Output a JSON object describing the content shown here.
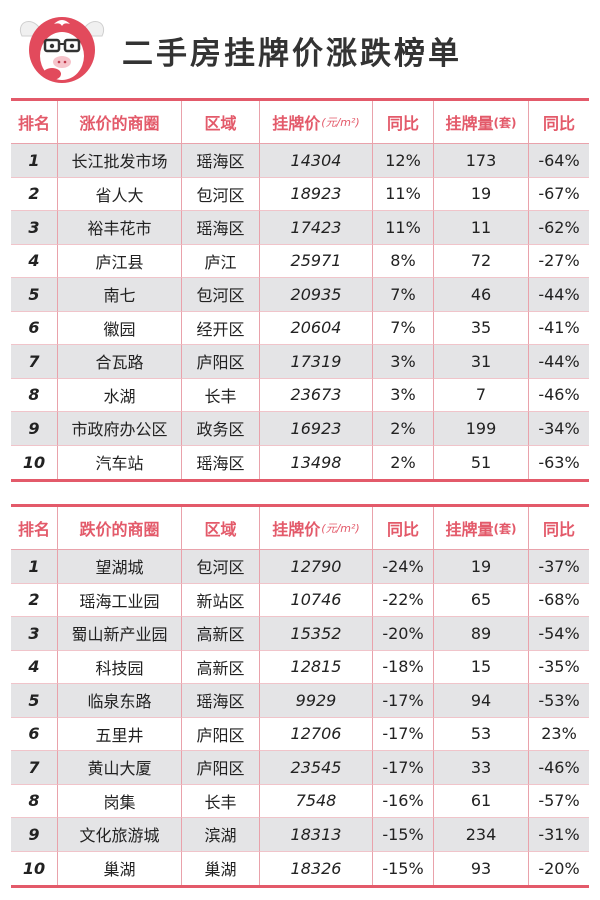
{
  "title": "二手房挂牌价涨跌榜单",
  "accent_color": "#e35a6a",
  "rise_table": {
    "headers": {
      "rank": "排名",
      "area": "涨价的商圈",
      "district": "区域",
      "price": "挂牌价",
      "price_unit": "(元/m²)",
      "yoy": "同比",
      "volume": "挂牌量",
      "volume_unit": "(套)",
      "volume_yoy": "同比"
    },
    "rows": [
      {
        "rank": "1",
        "area": "长江批发市场",
        "district": "瑶海区",
        "price": "14304",
        "yoy": "12%",
        "volume": "173",
        "volume_yoy": "-64%"
      },
      {
        "rank": "2",
        "area": "省人大",
        "district": "包河区",
        "price": "18923",
        "yoy": "11%",
        "volume": "19",
        "volume_yoy": "-67%"
      },
      {
        "rank": "3",
        "area": "裕丰花市",
        "district": "瑶海区",
        "price": "17423",
        "yoy": "11%",
        "volume": "11",
        "volume_yoy": "-62%"
      },
      {
        "rank": "4",
        "area": "庐江县",
        "district": "庐江",
        "price": "25971",
        "yoy": "8%",
        "volume": "72",
        "volume_yoy": "-27%"
      },
      {
        "rank": "5",
        "area": "南七",
        "district": "包河区",
        "price": "20935",
        "yoy": "7%",
        "volume": "46",
        "volume_yoy": "-44%"
      },
      {
        "rank": "6",
        "area": "徽园",
        "district": "经开区",
        "price": "20604",
        "yoy": "7%",
        "volume": "35",
        "volume_yoy": "-41%"
      },
      {
        "rank": "7",
        "area": "合瓦路",
        "district": "庐阳区",
        "price": "17319",
        "yoy": "3%",
        "volume": "31",
        "volume_yoy": "-44%"
      },
      {
        "rank": "8",
        "area": "水湖",
        "district": "长丰",
        "price": "23673",
        "yoy": "3%",
        "volume": "7",
        "volume_yoy": "-46%"
      },
      {
        "rank": "9",
        "area": "市政府办公区",
        "district": "政务区",
        "price": "16923",
        "yoy": "2%",
        "volume": "199",
        "volume_yoy": "-34%"
      },
      {
        "rank": "10",
        "area": "汽车站",
        "district": "瑶海区",
        "price": "13498",
        "yoy": "2%",
        "volume": "51",
        "volume_yoy": "-63%"
      }
    ]
  },
  "fall_table": {
    "headers": {
      "rank": "排名",
      "area": "跌价的商圈",
      "district": "区域",
      "price": "挂牌价",
      "price_unit": "(元/m²)",
      "yoy": "同比",
      "volume": "挂牌量",
      "volume_unit": "(套)",
      "volume_yoy": "同比"
    },
    "rows": [
      {
        "rank": "1",
        "area": "望湖城",
        "district": "包河区",
        "price": "12790",
        "yoy": "-24%",
        "volume": "19",
        "volume_yoy": "-37%"
      },
      {
        "rank": "2",
        "area": "瑶海工业园",
        "district": "新站区",
        "price": "10746",
        "yoy": "-22%",
        "volume": "65",
        "volume_yoy": "-68%"
      },
      {
        "rank": "3",
        "area": "蜀山新产业园",
        "district": "高新区",
        "price": "15352",
        "yoy": "-20%",
        "volume": "89",
        "volume_yoy": "-54%"
      },
      {
        "rank": "4",
        "area": "科技园",
        "district": "高新区",
        "price": "12815",
        "yoy": "-18%",
        "volume": "15",
        "volume_yoy": "-35%"
      },
      {
        "rank": "5",
        "area": "临泉东路",
        "district": "瑶海区",
        "price": "9929",
        "yoy": "-17%",
        "volume": "94",
        "volume_yoy": "-53%"
      },
      {
        "rank": "6",
        "area": "五里井",
        "district": "庐阳区",
        "price": "12706",
        "yoy": "-17%",
        "volume": "53",
        "volume_yoy": "23%"
      },
      {
        "rank": "7",
        "area": "黄山大厦",
        "district": "庐阳区",
        "price": "23545",
        "yoy": "-17%",
        "volume": "33",
        "volume_yoy": "-46%"
      },
      {
        "rank": "8",
        "area": "岗集",
        "district": "长丰",
        "price": "7548",
        "yoy": "-16%",
        "volume": "61",
        "volume_yoy": "-57%"
      },
      {
        "rank": "9",
        "area": "文化旅游城",
        "district": "滨湖",
        "price": "18313",
        "yoy": "-15%",
        "volume": "234",
        "volume_yoy": "-31%"
      },
      {
        "rank": "10",
        "area": "巢湖",
        "district": "巢湖",
        "price": "18326",
        "yoy": "-15%",
        "volume": "93",
        "volume_yoy": "-20%"
      }
    ]
  }
}
